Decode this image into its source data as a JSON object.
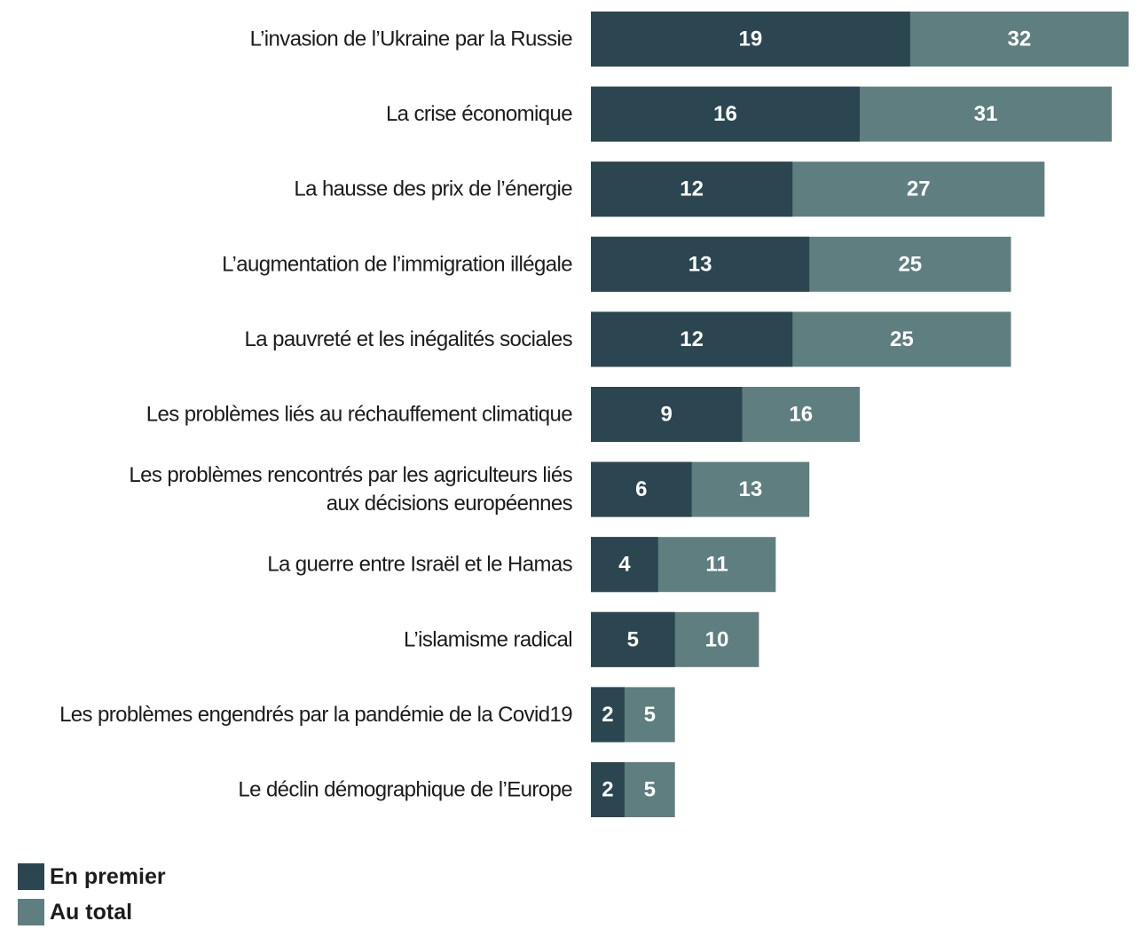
{
  "chart_data": {
    "type": "bar",
    "orientation": "horizontal",
    "stacking": "overlay",
    "categories": [
      [
        "L’invasion de l’Ukraine par la Russie"
      ],
      [
        "La crise économique"
      ],
      [
        "La hausse des prix de l’énergie"
      ],
      [
        "L’augmentation de l’immigration illégale"
      ],
      [
        "La pauvreté et les inégalités sociales"
      ],
      [
        "Les problèmes liés au réchauffement climatique"
      ],
      [
        "Les problèmes rencontrés par les agriculteurs liés",
        "aux décisions européennes"
      ],
      [
        "La guerre entre Israël et le Hamas"
      ],
      [
        "L’islamisme radical"
      ],
      [
        "Les problèmes engendrés par la pandémie de la Covid19"
      ],
      [
        "Le déclin démographique de l’Europe"
      ]
    ],
    "series": [
      {
        "name": "En premier",
        "color": "#2b4651",
        "values": [
          19,
          16,
          12,
          13,
          12,
          9,
          6,
          4,
          5,
          2,
          2
        ]
      },
      {
        "name": "Au total",
        "color": "#5f7e7f",
        "values": [
          32,
          31,
          27,
          25,
          25,
          16,
          13,
          11,
          10,
          5,
          5
        ]
      }
    ],
    "xlim": [
      0,
      32
    ],
    "legend_position": "bottom-left",
    "grid": false
  }
}
